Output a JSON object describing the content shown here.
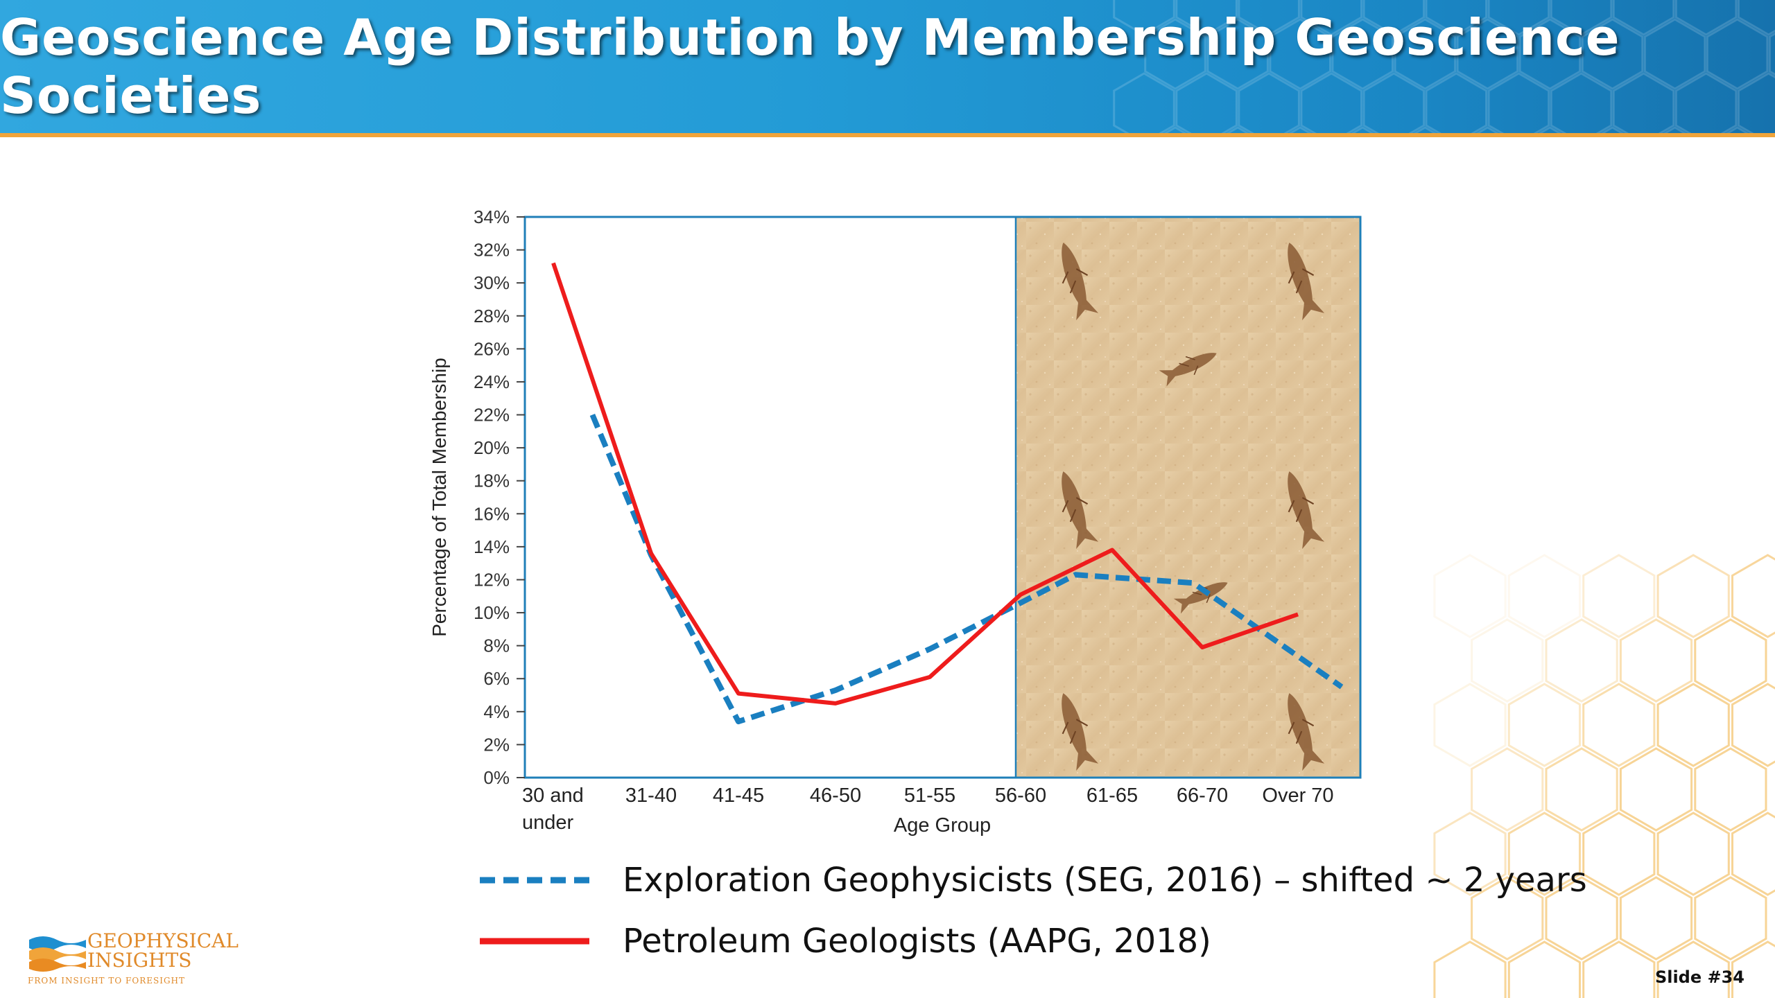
{
  "slide": {
    "title": "Geoscience Age Distribution by Membership Geoscience Societies",
    "slide_number": "Slide #34",
    "logo": {
      "name_line1": "GEOPHYSICAL",
      "name_line2": "INSIGHTS",
      "tagline": "FROM INSIGHT TO FORESIGHT"
    },
    "colors": {
      "header_blue": "#239bd6",
      "header_accent": "#f0a43a",
      "aapg_red": "#ee1c1c",
      "seg_blue": "#1a7fc0"
    }
  },
  "chart_data": {
    "type": "line",
    "title": "",
    "xlabel": "Age Group",
    "ylabel": "Percentage of Total Membership",
    "categories": [
      "30 and under",
      "31-40",
      "41-45",
      "46-50",
      "51-55",
      "56-60",
      "61-65",
      "66-70",
      "Over 70"
    ],
    "ylim": [
      0,
      34
    ],
    "yticks": [
      "0%",
      "2%",
      "4%",
      "6%",
      "8%",
      "10%",
      "12%",
      "14%",
      "16%",
      "18%",
      "20%",
      "22%",
      "24%",
      "26%",
      "28%",
      "30%",
      "32%",
      "34%"
    ],
    "shaded_region": {
      "from_category": "56-60",
      "to_category": "Over 70",
      "description": "fossil fish slab"
    },
    "series": [
      {
        "name": "Exploration Geophysicists (SEG, 2016) – shifted ~ 2 years",
        "style": "dashed",
        "color": "#1a7fc0",
        "points": [
          {
            "x": "31-40",
            "y": 22.0,
            "pos": -0.6
          },
          {
            "x": "31-40",
            "y": 13.5,
            "pos": 0.0
          },
          {
            "x": "41-45",
            "y": 3.4,
            "pos": 0.0
          },
          {
            "x": "46-50",
            "y": 5.3,
            "pos": 0.0
          },
          {
            "x": "51-55",
            "y": 7.8,
            "pos": 0.0
          },
          {
            "x": "56-60",
            "y": 10.6,
            "pos": 0.0
          },
          {
            "x": "61-65",
            "y": 12.3,
            "pos": -0.4
          },
          {
            "x": "66-70",
            "y": 11.8,
            "pos": -0.1
          },
          {
            "x": "Over 70",
            "y": 5.5,
            "pos": 0.45
          }
        ]
      },
      {
        "name": "Petroleum Geologists (AAPG, 2018)",
        "style": "solid",
        "color": "#ee1c1c",
        "points": [
          {
            "x": "30 and under",
            "y": 31.2,
            "pos": 0.0
          },
          {
            "x": "31-40",
            "y": 13.6,
            "pos": 0.0
          },
          {
            "x": "41-45",
            "y": 5.1,
            "pos": 0.0
          },
          {
            "x": "46-50",
            "y": 4.5,
            "pos": 0.0
          },
          {
            "x": "51-55",
            "y": 6.1,
            "pos": 0.0
          },
          {
            "x": "56-60",
            "y": 11.1,
            "pos": 0.0
          },
          {
            "x": "61-65",
            "y": 13.8,
            "pos": 0.0
          },
          {
            "x": "66-70",
            "y": 7.9,
            "pos": 0.0
          },
          {
            "x": "Over 70",
            "y": 9.9,
            "pos": 0.0
          }
        ]
      }
    ],
    "legend": {
      "placement": "bottom",
      "items": [
        {
          "label": "Exploration Geophysicists (SEG, 2016) – shifted ~ 2 years",
          "style": "dashed",
          "color": "#1a7fc0"
        },
        {
          "label": "Petroleum Geologists (AAPG, 2018)",
          "style": "solid",
          "color": "#ee1c1c"
        }
      ]
    }
  }
}
